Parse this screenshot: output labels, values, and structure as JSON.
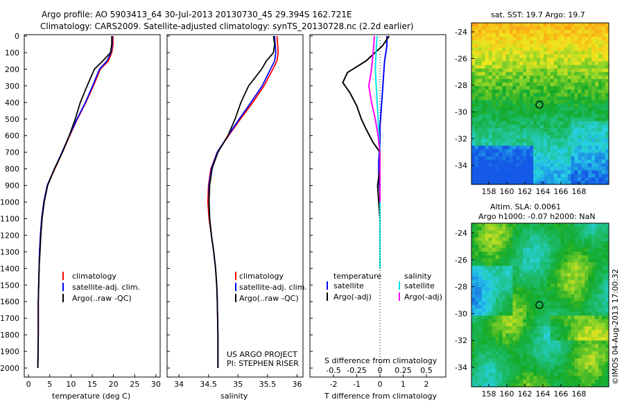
{
  "header": {
    "line1": "Argo profile: AO 5903413_64 30-Jul-2013 20130730_45 29.394S 162.721E",
    "line2": "Climatology: CARS2009. Satellite-adjusted climatology: synTS_20130728.nc (2.2d earlier)"
  },
  "depth_ticks": [
    "0",
    "100",
    "200",
    "300",
    "400",
    "500",
    "600",
    "700",
    "800",
    "900",
    "1000",
    "1100",
    "1200",
    "1300",
    "1400",
    "1500",
    "1600",
    "1700",
    "1800",
    "1900",
    "2000"
  ],
  "colors": {
    "climatology": "#ff0000",
    "satellite": "#0000ff",
    "argo": "#000000",
    "sal_satellite": "#00e5e5",
    "sal_argo": "#ff00ff"
  },
  "temp_panel": {
    "xlabel": "temperature (deg C)",
    "xticks": [
      "0",
      "5",
      "10",
      "15",
      "20",
      "25",
      "30"
    ],
    "legend": [
      "climatology",
      "satellite-adj. clim.",
      "Argo(..raw -QC)"
    ]
  },
  "sal_panel": {
    "xlabel": "salinity",
    "xticks": [
      "34",
      "34.5",
      "35",
      "35.5",
      "36"
    ],
    "legend": [
      "climatology",
      "satellite-adj. clim.",
      "Argo(..raw -QC)"
    ],
    "credit1": "US ARGO PROJECT",
    "credit2": "PI: STEPHEN RISER"
  },
  "diff_panel": {
    "xlabel": "T difference from climatology",
    "top_label": "S difference from climatology",
    "xticks": [
      "-2",
      "-1",
      "0",
      "1",
      "2"
    ],
    "top_ticks": [
      "-0.5",
      "-0.25",
      "0",
      "0.25",
      "0.5"
    ],
    "legend_temp_title": "temperature",
    "legend_sal_title": "salinity",
    "legend_temp": [
      "satellite",
      "Argo(-adj)"
    ],
    "legend_sal": [
      "satellite",
      "Argo(-adj)"
    ]
  },
  "map_top": {
    "title": "sat. SST: 19.7 Argo: 19.7",
    "yticks": [
      "-24",
      "-26",
      "-28",
      "-30",
      "-32",
      "-34"
    ],
    "xticks": [
      "158",
      "160",
      "162",
      "164",
      "166",
      "168"
    ]
  },
  "map_bottom": {
    "title1": "Altim. SLA: 0.0061",
    "title2": "Argo h1000: -0.07 h2000: NaN",
    "yticks": [
      "-24",
      "-26",
      "-28",
      "-30",
      "-32",
      "-34"
    ],
    "xticks": [
      "158",
      "160",
      "162",
      "164",
      "166",
      "168"
    ]
  },
  "side_stamp": "©IMOS 04-Aug-2013 17:00:32",
  "chart_data": [
    {
      "type": "line",
      "xlabel": "temperature (deg C)",
      "ylabel": "",
      "xlim": [
        -1,
        31
      ],
      "ylim": [
        2060,
        0
      ],
      "series": [
        {
          "name": "climatology",
          "x": [
            19.9,
            19.9,
            19.6,
            18.8,
            16.9,
            15.3,
            13.5,
            11.5,
            9.7,
            8.0,
            6.2,
            4.4,
            3.6,
            3.1,
            2.8,
            2.6,
            2.5,
            2.4,
            2.3,
            2.3,
            2.2
          ],
          "y": [
            0,
            50,
            100,
            150,
            200,
            300,
            400,
            500,
            600,
            700,
            800,
            900,
            1000,
            1100,
            1200,
            1300,
            1400,
            1500,
            1600,
            1800,
            2000
          ]
        },
        {
          "name": "satellite-adj. clim.",
          "x": [
            19.7,
            19.7,
            19.4,
            18.5,
            16.7,
            15.1,
            13.4,
            11.4,
            9.6,
            7.9,
            6.1,
            4.4,
            3.6,
            3.1,
            2.8,
            2.6,
            2.5,
            2.4,
            2.3,
            2.3,
            2.2
          ],
          "y": [
            0,
            50,
            100,
            150,
            200,
            300,
            400,
            500,
            600,
            700,
            800,
            900,
            1000,
            1100,
            1200,
            1300,
            1400,
            1500,
            1600,
            1800,
            2000
          ]
        },
        {
          "name": "Argo(..raw -QC)",
          "x": [
            19.6,
            19.6,
            19.3,
            17.5,
            15.5,
            13.8,
            12.2,
            11.0,
            9.6,
            8.0,
            6.1,
            4.5,
            3.7,
            3.2,
            2.9,
            2.7,
            2.5,
            2.4,
            2.3,
            2.3,
            2.2
          ],
          "y": [
            0,
            50,
            100,
            150,
            200,
            300,
            400,
            500,
            600,
            700,
            800,
            900,
            1000,
            1100,
            1200,
            1300,
            1400,
            1500,
            1600,
            1800,
            2000
          ]
        }
      ]
    },
    {
      "type": "line",
      "xlabel": "salinity",
      "xlim": [
        33.8,
        36.1
      ],
      "ylim": [
        2060,
        0
      ],
      "series": [
        {
          "name": "climatology",
          "x": [
            35.66,
            35.67,
            35.68,
            35.66,
            35.59,
            35.44,
            35.25,
            35.04,
            34.84,
            34.65,
            34.54,
            34.5,
            34.49,
            34.51,
            34.55,
            34.59,
            34.62,
            34.64,
            34.65,
            34.66,
            34.66
          ],
          "y": [
            0,
            50,
            100,
            150,
            200,
            300,
            400,
            500,
            600,
            700,
            800,
            900,
            1000,
            1100,
            1200,
            1300,
            1400,
            1500,
            1600,
            1800,
            2000
          ]
        },
        {
          "name": "satellite-adj. clim.",
          "x": [
            35.62,
            35.63,
            35.64,
            35.62,
            35.55,
            35.41,
            35.22,
            35.02,
            34.83,
            34.65,
            34.55,
            34.51,
            34.51,
            34.52,
            34.55,
            34.59,
            34.62,
            34.64,
            34.65,
            34.66,
            34.66
          ],
          "y": [
            0,
            50,
            100,
            150,
            200,
            300,
            400,
            500,
            600,
            700,
            800,
            900,
            1000,
            1100,
            1200,
            1300,
            1400,
            1500,
            1600,
            1800,
            2000
          ]
        },
        {
          "name": "Argo(..raw -QC)",
          "x": [
            35.6,
            35.62,
            35.6,
            35.48,
            35.4,
            35.18,
            35.05,
            34.95,
            34.83,
            34.66,
            34.56,
            34.52,
            34.51,
            34.52,
            34.55,
            34.59,
            34.62,
            34.64,
            34.65,
            34.66,
            34.66
          ],
          "y": [
            0,
            50,
            100,
            150,
            200,
            300,
            400,
            500,
            600,
            700,
            800,
            900,
            1000,
            1100,
            1200,
            1300,
            1400,
            1500,
            1600,
            1800,
            2000
          ]
        }
      ]
    },
    {
      "type": "line",
      "xlabel": "T difference from climatology",
      "xlim": [
        -2.8,
        2.8
      ],
      "ylim": [
        2060,
        0
      ],
      "series": [
        {
          "name": "satellite",
          "x": [
            0.3,
            0.3,
            0.2,
            0.15,
            0.1,
            0.05,
            0.0,
            0.0,
            -0.05,
            -0.05,
            0.0,
            0.0,
            0.0,
            0.0
          ],
          "y": [
            0,
            60,
            150,
            250,
            350,
            450,
            550,
            650,
            750,
            850,
            950,
            1100,
            1250,
            1400
          ]
        },
        {
          "name": "Argo(-adj)",
          "x": [
            0.4,
            0.1,
            -0.6,
            -1.4,
            -1.6,
            -1.3,
            -1.0,
            -0.8,
            -0.6,
            -0.3,
            0.0,
            0.0,
            -0.1,
            0.0,
            0.0
          ],
          "y": [
            0,
            60,
            150,
            220,
            280,
            340,
            420,
            500,
            560,
            640,
            700,
            800,
            900,
            1100,
            1400
          ]
        },
        {
          "name": "satellite (S)",
          "x": [
            -0.03,
            -0.04,
            -0.05,
            -0.04,
            -0.03,
            -0.02,
            -0.01,
            0.0,
            0.0,
            0.0
          ],
          "y": [
            0,
            80,
            200,
            300,
            400,
            500,
            600,
            700,
            900,
            1400
          ]
        },
        {
          "name": "Argo(-adj) (S)",
          "x": [
            -0.06,
            -0.07,
            -0.09,
            -0.12,
            -0.09,
            -0.05,
            -0.02,
            0.0,
            0.0
          ],
          "y": [
            0,
            80,
            200,
            300,
            400,
            500,
            600,
            700,
            1000
          ]
        }
      ]
    }
  ]
}
